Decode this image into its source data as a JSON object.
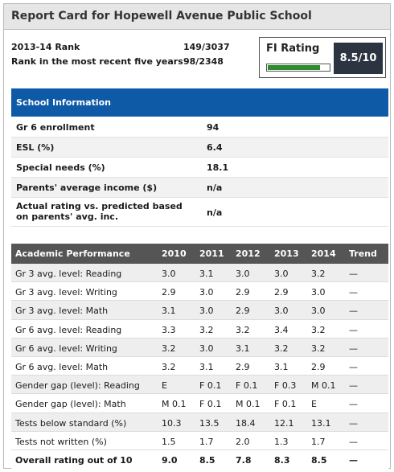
{
  "title": "Report Card for Hopewell Avenue Public School",
  "ranks": [
    {
      "label": "2013-14 Rank",
      "value": "149/3037"
    },
    {
      "label": "Rank in the most recent five years",
      "value": "98/2348"
    }
  ],
  "fi_rating": {
    "label": "FI Rating",
    "score": "8.5/10",
    "level": 0.85,
    "bar_color": "#2e8b2e"
  },
  "school_info": {
    "header": "School Information",
    "rows": [
      {
        "label": "Gr 6 enrollment",
        "value": "94"
      },
      {
        "label": "ESL (%)",
        "value": "6.4"
      },
      {
        "label": "Special needs (%)",
        "value": "18.1"
      },
      {
        "label": "Parents' average income ($)",
        "value": "n/a"
      },
      {
        "label": "Actual rating vs. predicted based on parents' avg. inc.",
        "value": "n/a"
      }
    ]
  },
  "academic": {
    "headers": [
      "Academic Performance",
      "2010",
      "2011",
      "2012",
      "2013",
      "2014",
      "Trend"
    ],
    "rows": [
      [
        "Gr 3 avg. level: Reading",
        "3.0",
        "3.1",
        "3.0",
        "3.0",
        "3.2",
        "—"
      ],
      [
        "Gr 3 avg. level: Writing",
        "2.9",
        "3.0",
        "2.9",
        "2.9",
        "3.0",
        "—"
      ],
      [
        "Gr 3 avg. level: Math",
        "3.1",
        "3.0",
        "2.9",
        "3.0",
        "3.0",
        "—"
      ],
      [
        "Gr 6 avg. level: Reading",
        "3.3",
        "3.2",
        "3.2",
        "3.4",
        "3.2",
        "—"
      ],
      [
        "Gr 6 avg. level: Writing",
        "3.2",
        "3.0",
        "3.1",
        "3.2",
        "3.2",
        "—"
      ],
      [
        "Gr 6 avg. level: Math",
        "3.2",
        "3.1",
        "2.9",
        "3.1",
        "2.9",
        "—"
      ],
      [
        "Gender gap (level): Reading",
        "E",
        "F 0.1",
        "F 0.1",
        "F 0.3",
        "M 0.1",
        "—"
      ],
      [
        "Gender gap (level): Math",
        "M 0.1",
        "F 0.1",
        "M 0.1",
        "F 0.1",
        "E",
        "—"
      ],
      [
        "Tests below standard (%)",
        "10.3",
        "13.5",
        "18.4",
        "12.1",
        "13.1",
        "—"
      ],
      [
        "Tests not written (%)",
        "1.5",
        "1.7",
        "2.0",
        "1.3",
        "1.7",
        "—"
      ]
    ],
    "overall": [
      "Overall rating out of 10",
      "9.0",
      "8.5",
      "7.8",
      "8.3",
      "8.5",
      "—"
    ]
  }
}
